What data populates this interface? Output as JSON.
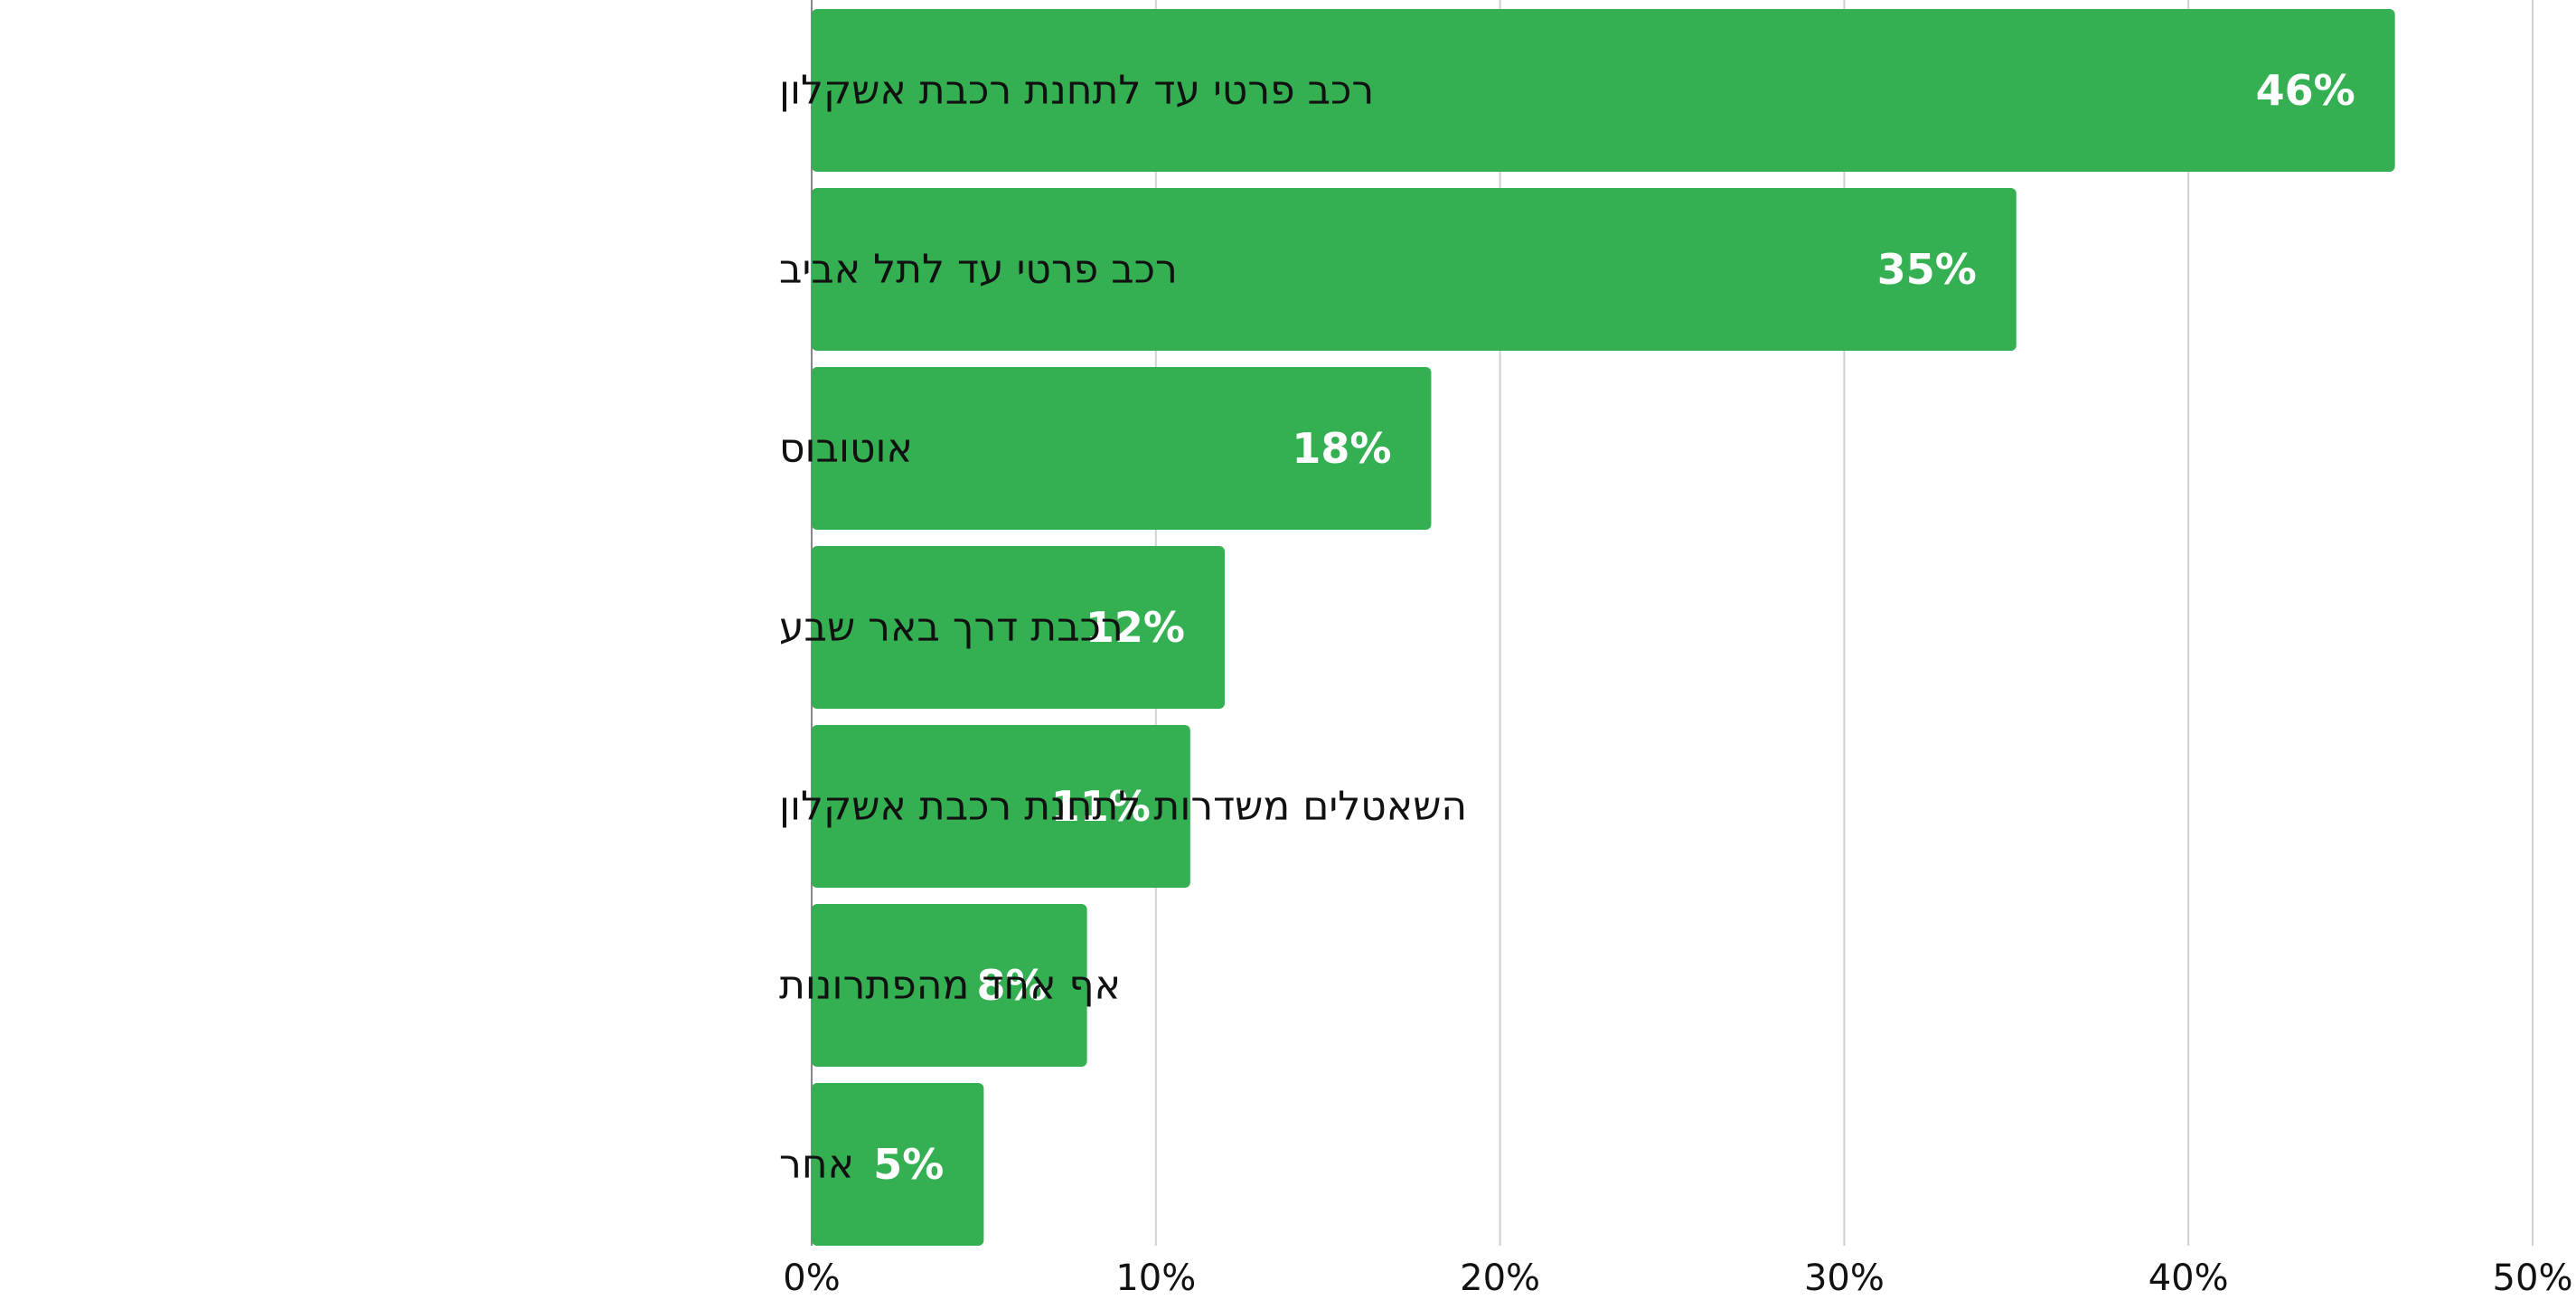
{
  "chart_data": {
    "type": "bar",
    "orientation": "horizontal",
    "categories": [
      "רכב פרטי עד לתחנת רכבת אשקלון",
      "רכב פרטי עד לתל אביב",
      "אוטובוס",
      "רכבת דרך באר שבע",
      "השאטלים משדרות לתחנת רכבת אשקלון",
      "אף אחד מהפתרונות",
      "אחר"
    ],
    "values": [
      46,
      35,
      18,
      12,
      11,
      8,
      5
    ],
    "value_labels": [
      "46%",
      "35%",
      "18%",
      "12%",
      "11%",
      "8%",
      "5%"
    ],
    "x_ticks": [
      "0%",
      "10%",
      "20%",
      "30%",
      "40%",
      "50%"
    ],
    "xlim": [
      0,
      50
    ],
    "grid": true,
    "legend": "none",
    "colors": {
      "bar": "#34b052",
      "grid": "#d0d0d0",
      "axis": "#888888",
      "label_text": "#111111",
      "value_text": "#ffffff"
    }
  }
}
